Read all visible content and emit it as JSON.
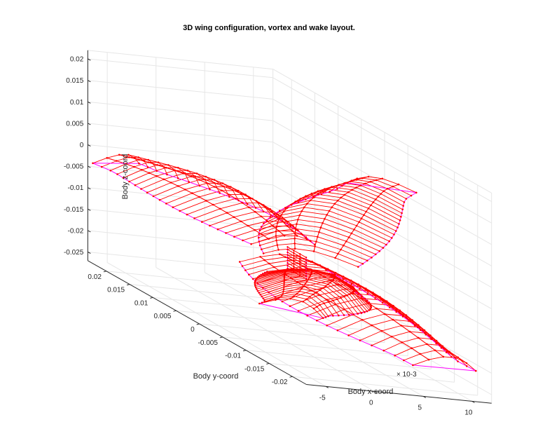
{
  "chart_data": {
    "type": "3d-line",
    "title": "3D wing configuration, vortex and wake layout.",
    "xlabel": "Body x-coord",
    "ylabel": "Body y-coord",
    "zlabel": "Body z-coord",
    "x_exponent_label": "× 10-3",
    "x_ticks": [
      "-5",
      "0",
      "5",
      "10"
    ],
    "y_ticks": [
      "0.02",
      "0.015",
      "0.01",
      "0.005",
      "0",
      "-0.005",
      "-0.01",
      "-0.015",
      "-0.02"
    ],
    "z_ticks": [
      "0.02",
      "0.015",
      "0.01",
      "0.005",
      "0",
      "-0.005",
      "-0.01",
      "-0.015",
      "-0.02",
      "-0.025"
    ],
    "xlim": [
      -0.007,
      0.012
    ],
    "ylim": [
      -0.023,
      0.024
    ],
    "zlim": [
      -0.027,
      0.022
    ],
    "grid": true,
    "colors": {
      "vortex": "#ff0000",
      "wake": "#ff00ff",
      "markers": "#ff0000",
      "grid": "#e6e6e6",
      "axis": "#262626"
    },
    "series": [
      {
        "type": "wing",
        "root": [
          0.003,
          0.003,
          -0.008
        ],
        "tip": [
          -0.003,
          0.02,
          -0.001
        ],
        "chord": 0.011,
        "camber": 0.006
      },
      {
        "type": "wing",
        "root": [
          0.003,
          -0.003,
          -0.008
        ],
        "tip": [
          0.001,
          -0.013,
          0.016
        ],
        "chord": 0.012,
        "camber": 0.0055
      },
      {
        "type": "wing",
        "root": [
          0.003,
          0.003,
          -0.013
        ],
        "tip": [
          0.004,
          -0.021,
          -0.021
        ],
        "chord": 0.012,
        "camber": 0.007
      },
      {
        "type": "wing",
        "root": [
          0.003,
          -0.003,
          -0.013
        ],
        "tip": [
          0.0085,
          0.004,
          -0.025
        ],
        "chord": 0.011,
        "camber": 0.006
      },
      {
        "type": "hub",
        "center": [
          0.003,
          0.0,
          -0.0105
        ],
        "height": 0.005,
        "width": 0.004
      }
    ]
  }
}
